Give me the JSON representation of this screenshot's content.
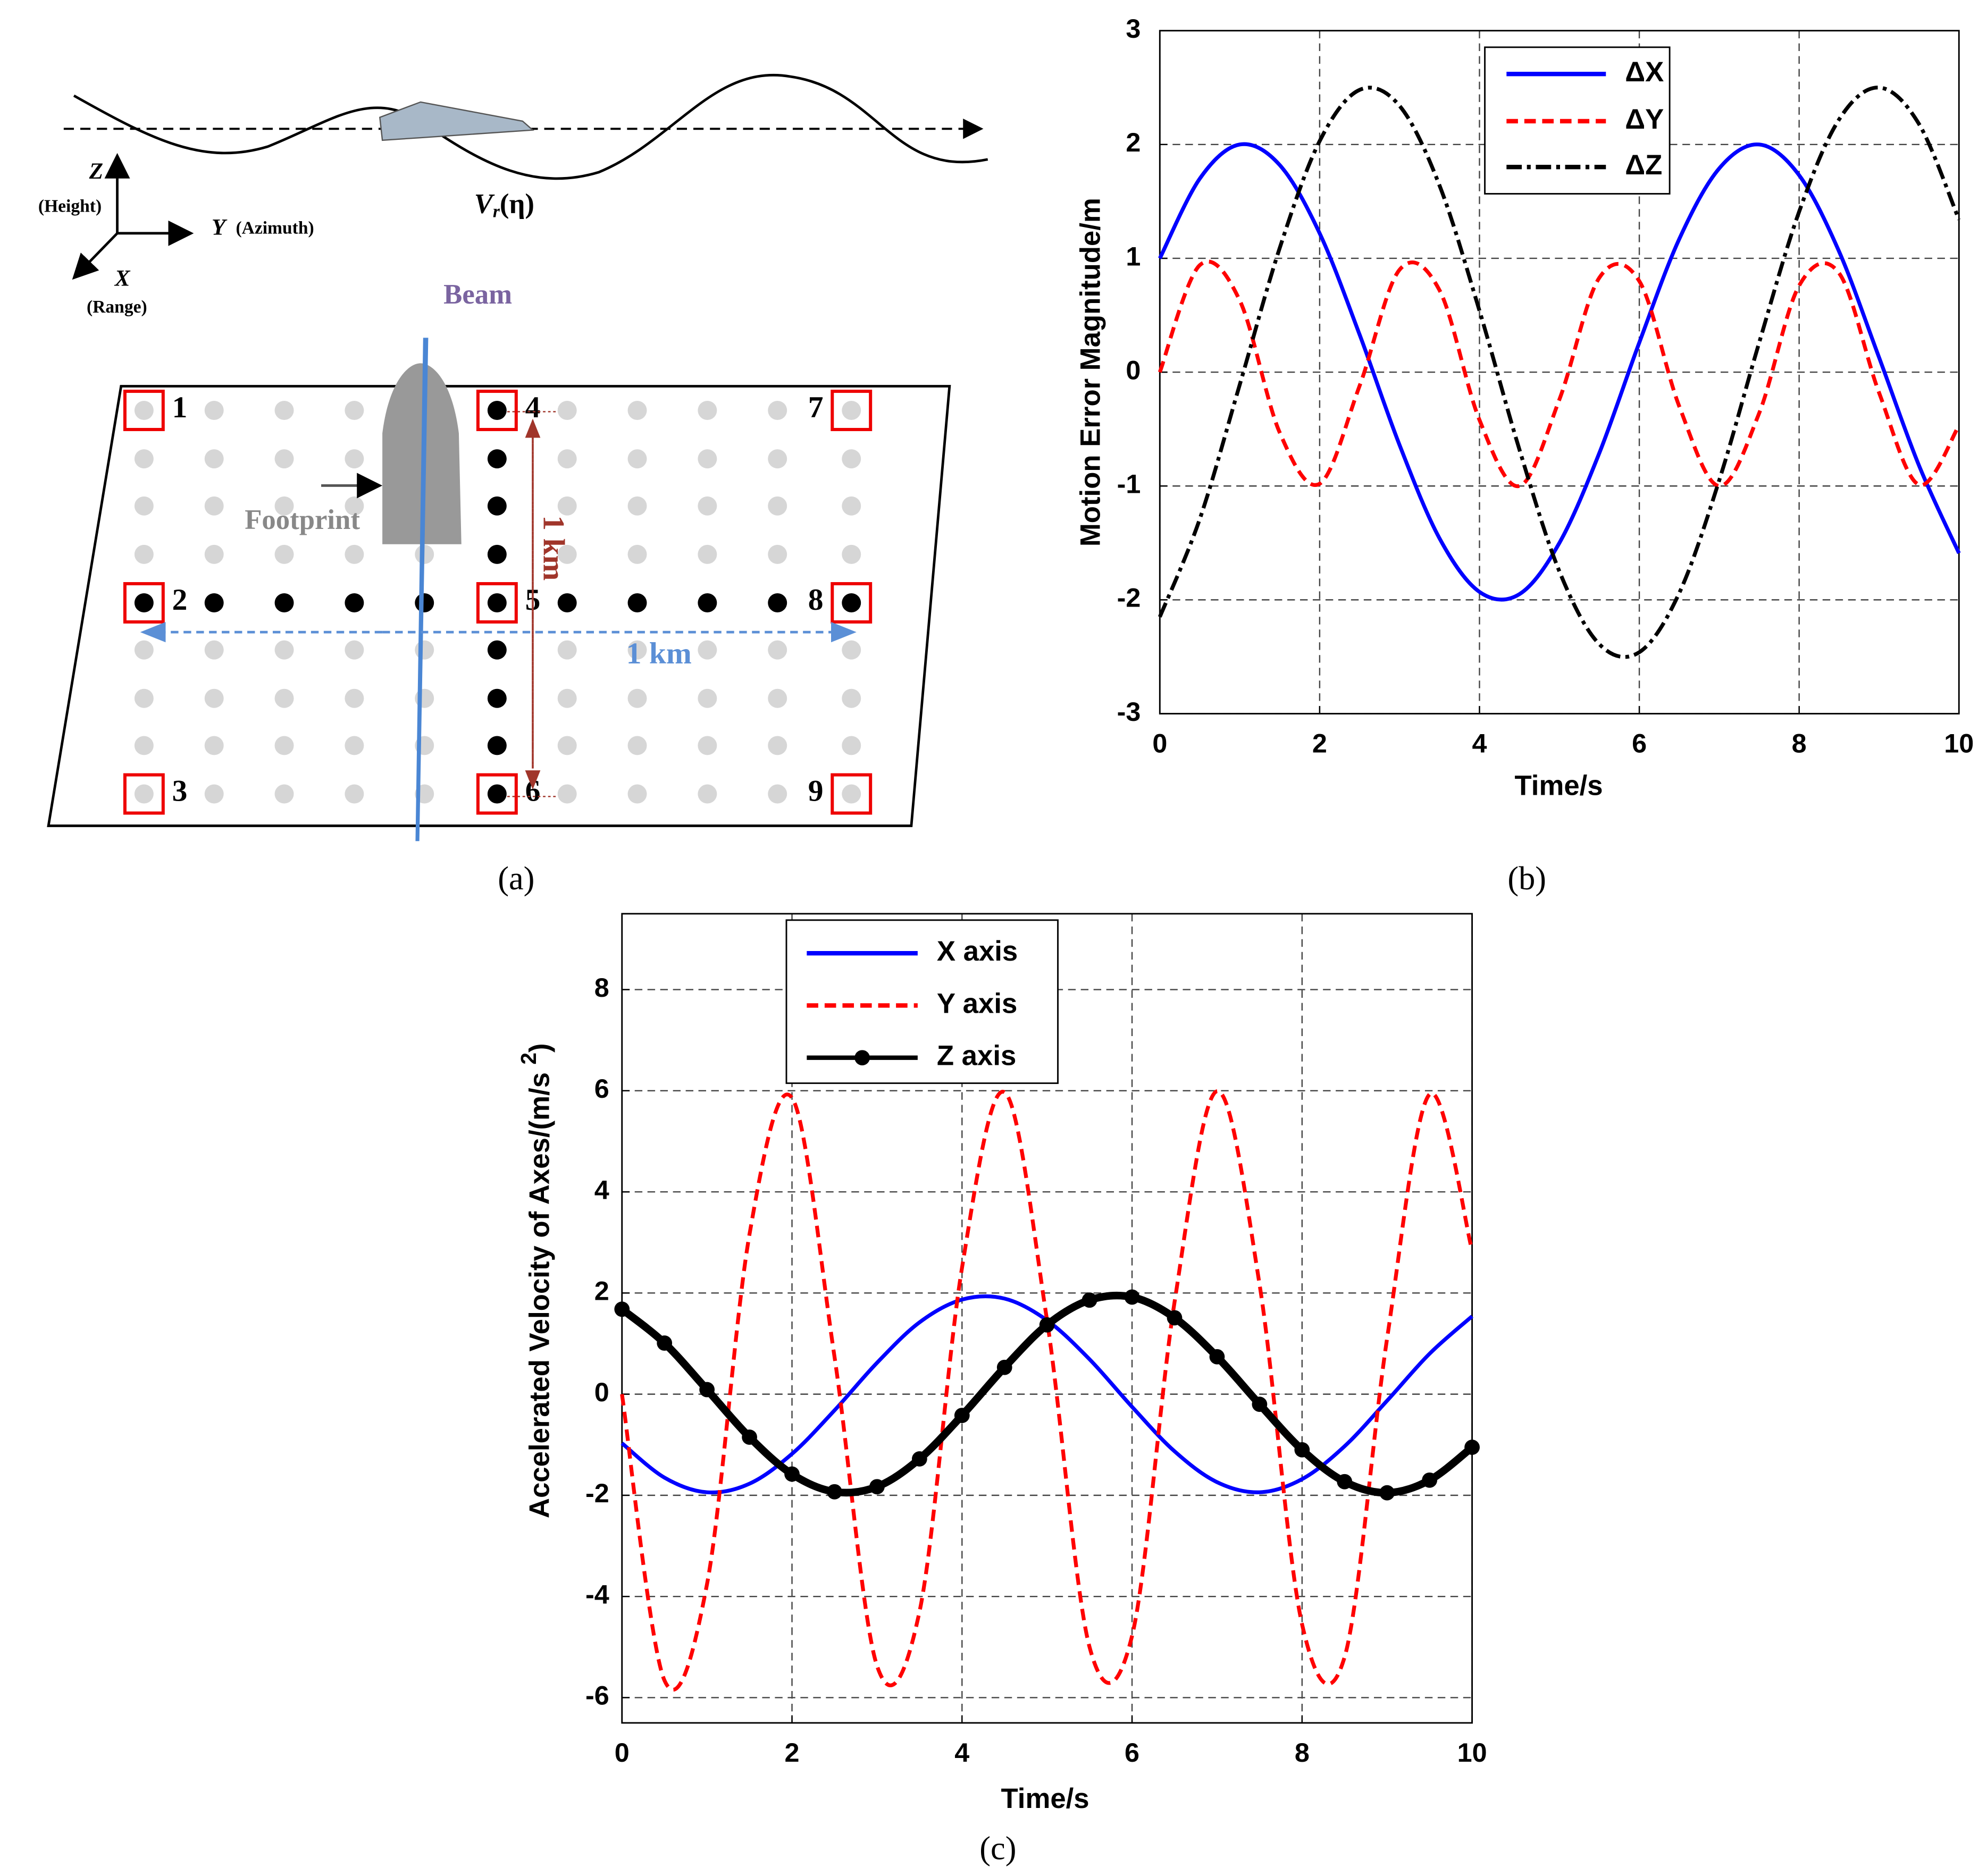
{
  "diagram": {
    "caption": "(a)",
    "axes": {
      "z": "Z",
      "z_name": "(Height)",
      "y": "Y",
      "y_name": "(Azimuth)",
      "x": "X",
      "x_name": "(Range)"
    },
    "velocity": {
      "symbol": "V",
      "subscript": "r",
      "argument": "(η)"
    },
    "beam": "Beam",
    "footprint": "Footprint",
    "range_span": "1 km",
    "azimuth_span": "1 km",
    "points": [
      "1",
      "2",
      "3",
      "4",
      "5",
      "6",
      "7",
      "8",
      "9"
    ]
  },
  "chart_data": [
    {
      "type": "line",
      "caption": "(b)",
      "xlabel": "Time/s",
      "ylabel": "Motion Error Magnitude/m",
      "x": [
        0,
        0.5,
        1,
        1.5,
        2,
        2.5,
        3,
        3.5,
        4,
        4.5,
        5,
        5.5,
        6,
        6.5,
        7,
        7.5,
        8,
        8.5,
        9,
        9.5,
        10
      ],
      "xlim": [
        0,
        10
      ],
      "xticks": [
        0,
        2,
        4,
        6,
        8,
        10
      ],
      "ylim": [
        -3,
        3
      ],
      "yticks": [
        -3,
        -2,
        -1,
        0,
        1,
        2,
        3
      ],
      "grid": true,
      "series": [
        {
          "name": "ΔX",
          "color": "#0000ff",
          "style": "solid",
          "values": [
            1.0,
            1.7,
            2.0,
            1.82,
            1.22,
            0.33,
            -0.64,
            -1.46,
            -1.93,
            -1.95,
            -1.5,
            -0.71,
            0.26,
            1.17,
            1.79,
            2.0,
            1.73,
            1.06,
            0.13,
            -0.82,
            -1.59
          ]
        },
        {
          "name": "ΔY",
          "color": "#ff0000",
          "style": "dashed",
          "values": [
            0,
            0.94,
            0.63,
            -0.53,
            -0.98,
            -0.12,
            0.9,
            0.72,
            -0.42,
            -1.0,
            -0.24,
            0.83,
            0.8,
            -0.3,
            -1.0,
            -0.36,
            0.76,
            0.87,
            -0.18,
            -0.99,
            -0.47
          ]
        },
        {
          "name": "ΔZ",
          "color": "#000000",
          "style": "dashdot",
          "values": [
            -2.15,
            -1.29,
            -0.11,
            1.09,
            2.03,
            2.48,
            2.34,
            1.64,
            0.54,
            -0.68,
            -1.75,
            -2.39,
            -2.46,
            -1.94,
            -0.95,
            0.26,
            1.41,
            2.22,
            2.5,
            2.18,
            1.34
          ]
        }
      ]
    },
    {
      "type": "line",
      "caption": "(c)",
      "xlabel": "Time/s",
      "ylabel": "Accelerated Velocity of Axes/(m/s",
      "ylabel_superscript": "2",
      "ylabel_end": ")",
      "x": [
        0,
        0.5,
        1,
        1.5,
        2,
        2.5,
        3,
        3.5,
        4,
        4.5,
        5,
        5.5,
        6,
        6.5,
        7,
        7.5,
        8,
        8.5,
        9,
        9.5,
        10
      ],
      "xlim": [
        0,
        10
      ],
      "xticks": [
        0,
        2,
        4,
        6,
        8,
        10
      ],
      "ylim": [
        -6.5,
        9.5
      ],
      "yticks": [
        -6,
        -4,
        -2,
        0,
        2,
        4,
        6,
        8
      ],
      "grid": true,
      "series": [
        {
          "name": "X axis",
          "color": "#0000ff",
          "style": "solid",
          "values": [
            -0.97,
            -1.65,
            -1.94,
            -1.77,
            -1.18,
            -0.32,
            0.62,
            1.42,
            1.87,
            1.89,
            1.46,
            0.69,
            -0.25,
            -1.13,
            -1.74,
            -1.94,
            -1.68,
            -1.03,
            -0.13,
            0.8,
            1.54
          ]
        },
        {
          "name": "Y axis",
          "color": "#ff0000",
          "style": "dashed",
          "values": [
            0,
            -5.66,
            -3.76,
            3.16,
            5.86,
            0.74,
            -5.37,
            -4.3,
            2.5,
            5.97,
            1.46,
            -5.0,
            -4.78,
            1.82,
            5.99,
            2.17,
            -4.55,
            -5.2,
            1.1,
            5.93,
            2.84
          ]
        },
        {
          "name": "Z axis",
          "color": "#000000",
          "style": "solid-dots",
          "values": [
            1.68,
            1.01,
            0.09,
            -0.85,
            -1.58,
            -1.93,
            -1.83,
            -1.28,
            -0.42,
            0.53,
            1.37,
            1.86,
            1.92,
            1.51,
            0.74,
            -0.2,
            -1.1,
            -1.73,
            -1.95,
            -1.7,
            -1.05
          ]
        }
      ]
    }
  ]
}
